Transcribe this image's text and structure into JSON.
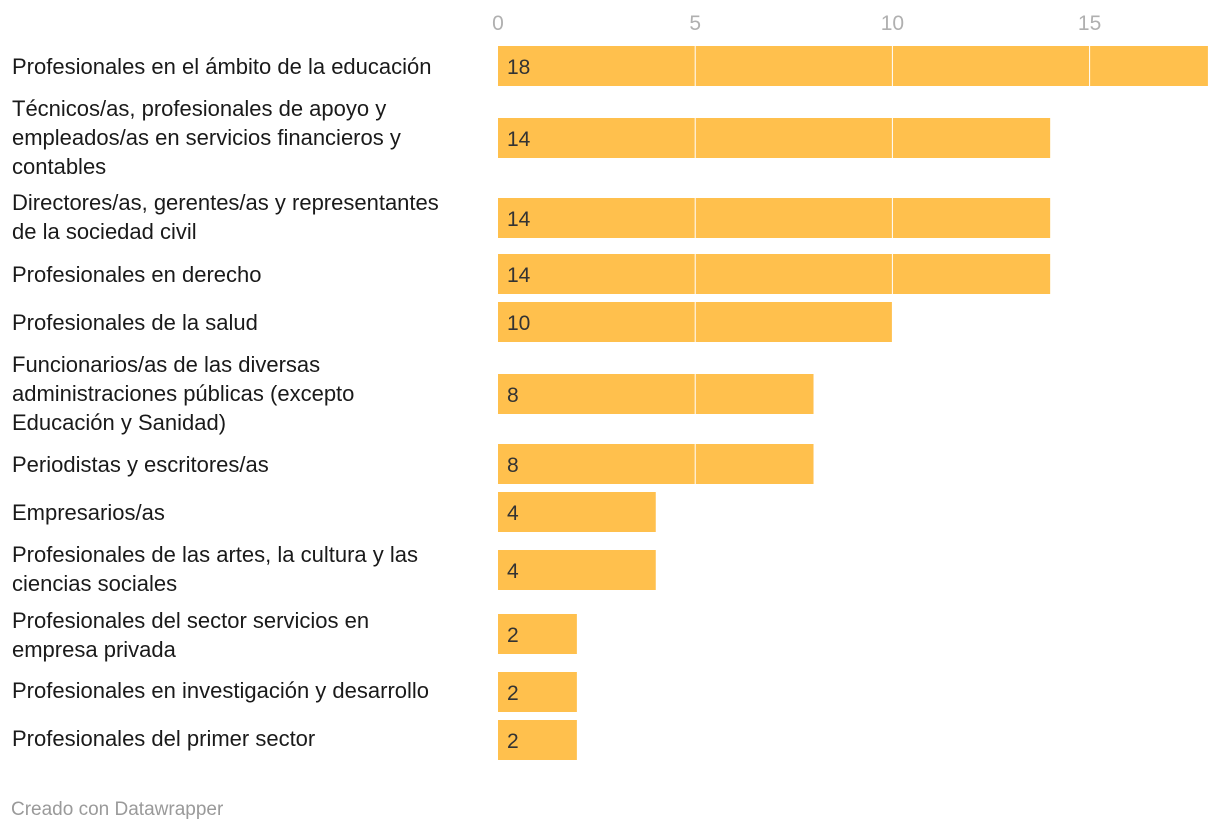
{
  "chart_data": {
    "type": "bar",
    "orientation": "horizontal",
    "categories": [
      [
        "Profesionales en el ámbito de la educación"
      ],
      [
        "Técnicos/as, profesionales de apoyo y",
        "empleados/as en servicios financieros y",
        "contables"
      ],
      [
        "Directores/as, gerentes/as y representantes",
        "de la sociedad civil"
      ],
      [
        "Profesionales en derecho"
      ],
      [
        "Profesionales de la salud"
      ],
      [
        "Funcionarios/as de las diversas",
        "administraciones públicas (excepto",
        "Educación y Sanidad)"
      ],
      [
        "Periodistas y escritores/as"
      ],
      [
        "Empresarios/as"
      ],
      [
        "Profesionales de las artes, la cultura y las",
        "ciencias sociales"
      ],
      [
        "Profesionales del sector servicios en",
        "empresa privada"
      ],
      [
        "Profesionales en investigación y desarrollo"
      ],
      [
        "Profesionales del primer sector"
      ]
    ],
    "values": [
      18,
      14,
      14,
      14,
      10,
      8,
      8,
      4,
      4,
      2,
      2,
      2
    ],
    "value_labels": [
      "18",
      "14",
      "14",
      "14",
      "10",
      "8",
      "8",
      "4",
      "4",
      "2",
      "2",
      "2"
    ],
    "xticks": [
      "0",
      "5",
      "10",
      "15"
    ],
    "xlim": [
      0,
      18
    ],
    "bar_color": "#ffc04d",
    "gridline_color": "#ffffff",
    "title": "",
    "xlabel": "",
    "ylabel": ""
  },
  "footer": {
    "credit": "Creado con Datawrapper"
  }
}
